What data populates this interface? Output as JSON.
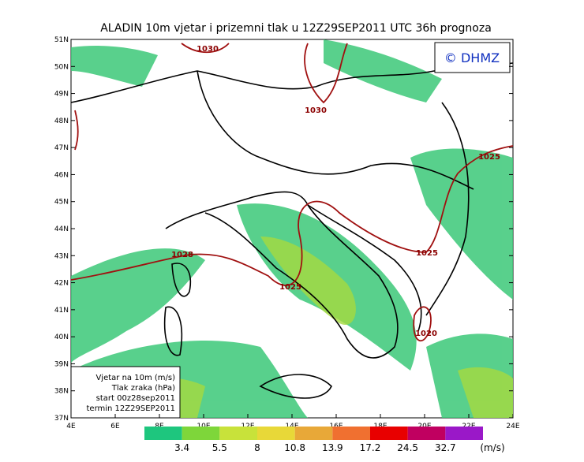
{
  "title": "ALADIN 10m vjetar i prizemni tlak u 12Z29SEP2011 UTC 36h prognoza",
  "copyright": "© DHMZ",
  "latitude_labels": [
    "51N",
    "50N",
    "49N",
    "48N",
    "47N",
    "46N",
    "45N",
    "44N",
    "43N",
    "42N",
    "41N",
    "40N",
    "39N",
    "38N",
    "37N"
  ],
  "longitude_labels": [
    "4E",
    "6E",
    "8E",
    "10E",
    "12E",
    "14E",
    "16E",
    "18E",
    "20E",
    "22E",
    "24E"
  ],
  "isobar_labels": [
    "1030",
    "1030",
    "1025",
    "1028",
    "1025",
    "1025",
    "1020"
  ],
  "legend": {
    "lines": [
      "Vjetar na 10m (m/s)",
      "Tlak zraka (hPa)",
      "start 00z28sep2011",
      "termin 12Z29SEP2011"
    ]
  },
  "colorbar": {
    "thresholds": [
      3.4,
      5.5,
      8,
      10.8,
      13.9,
      17.2,
      24.5,
      32.7
    ],
    "colors": [
      "#1ec67e",
      "#7ed63a",
      "#c8e23a",
      "#e8d838",
      "#e8a838",
      "#f07030",
      "#e80000",
      "#c00060",
      "#9a18c8"
    ],
    "unit": "(m/s)"
  }
}
